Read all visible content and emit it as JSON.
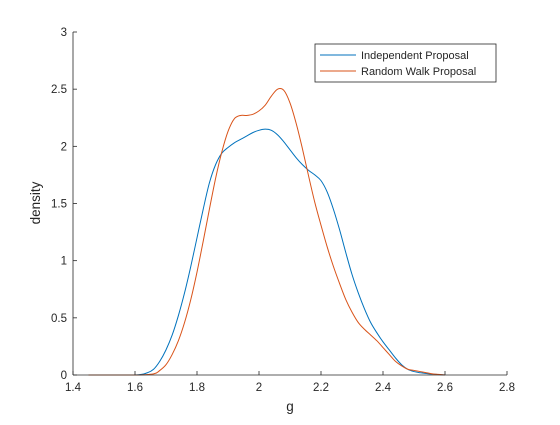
{
  "chart_data": {
    "type": "line",
    "title": "",
    "xlabel": "g",
    "ylabel": "density",
    "xlim": [
      1.4,
      2.8
    ],
    "ylim": [
      0,
      3
    ],
    "xticks": [
      "1.4",
      "1.6",
      "1.8",
      "2",
      "2.2",
      "2.4",
      "2.6",
      "2.8"
    ],
    "yticks": [
      "0",
      "0.5",
      "1",
      "1.5",
      "2",
      "2.5",
      "3"
    ],
    "grid": false,
    "legend_position": "top-right",
    "series": [
      {
        "name": "Independent Proposal",
        "color": "#0072BD",
        "x": [
          1.45,
          1.6,
          1.64,
          1.66,
          1.68,
          1.7,
          1.72,
          1.74,
          1.76,
          1.78,
          1.8,
          1.82,
          1.84,
          1.86,
          1.88,
          1.9,
          1.92,
          1.94,
          1.96,
          1.98,
          2.0,
          2.02,
          2.04,
          2.06,
          2.08,
          2.1,
          2.12,
          2.14,
          2.16,
          2.18,
          2.2,
          2.22,
          2.24,
          2.26,
          2.28,
          2.3,
          2.32,
          2.34,
          2.36,
          2.38,
          2.4,
          2.42,
          2.44,
          2.46,
          2.48,
          2.5,
          2.52,
          2.55,
          2.6
        ],
        "y": [
          0,
          0.0,
          0.02,
          0.05,
          0.12,
          0.22,
          0.35,
          0.52,
          0.72,
          0.95,
          1.2,
          1.45,
          1.68,
          1.84,
          1.94,
          1.99,
          2.03,
          2.06,
          2.09,
          2.12,
          2.14,
          2.15,
          2.14,
          2.1,
          2.04,
          1.97,
          1.9,
          1.84,
          1.79,
          1.75,
          1.7,
          1.6,
          1.45,
          1.27,
          1.07,
          0.88,
          0.72,
          0.58,
          0.46,
          0.37,
          0.29,
          0.22,
          0.15,
          0.09,
          0.05,
          0.03,
          0.02,
          0.01,
          0
        ]
      },
      {
        "name": "Random Walk Proposal",
        "color": "#D95319",
        "x": [
          1.45,
          1.6,
          1.66,
          1.68,
          1.7,
          1.72,
          1.74,
          1.76,
          1.78,
          1.8,
          1.82,
          1.84,
          1.86,
          1.88,
          1.9,
          1.92,
          1.94,
          1.96,
          1.98,
          2.0,
          2.02,
          2.04,
          2.06,
          2.08,
          2.1,
          2.12,
          2.14,
          2.16,
          2.18,
          2.2,
          2.22,
          2.24,
          2.26,
          2.28,
          2.3,
          2.32,
          2.34,
          2.36,
          2.38,
          2.4,
          2.42,
          2.44,
          2.46,
          2.48,
          2.5,
          2.52,
          2.54,
          2.56,
          2.58,
          2.6
        ],
        "y": [
          0,
          0.0,
          0.01,
          0.04,
          0.09,
          0.18,
          0.3,
          0.46,
          0.66,
          0.9,
          1.17,
          1.45,
          1.72,
          1.95,
          2.13,
          2.24,
          2.27,
          2.27,
          2.28,
          2.31,
          2.36,
          2.44,
          2.5,
          2.49,
          2.38,
          2.2,
          1.98,
          1.74,
          1.51,
          1.31,
          1.12,
          0.95,
          0.8,
          0.66,
          0.55,
          0.46,
          0.4,
          0.35,
          0.3,
          0.24,
          0.18,
          0.12,
          0.08,
          0.05,
          0.04,
          0.03,
          0.02,
          0.01,
          0.005,
          0
        ]
      }
    ]
  }
}
